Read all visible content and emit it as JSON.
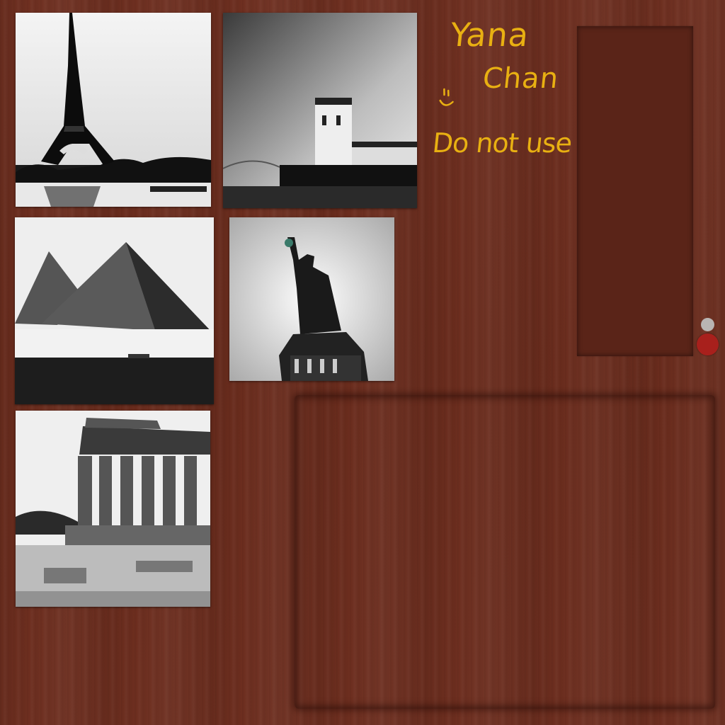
{
  "sticky_note": {
    "name_line_1": "Yana",
    "name_line_2": "Chan",
    "warning": "Do not use",
    "color": "#e8b012"
  },
  "photos": [
    {
      "subject": "eiffel-tower"
    },
    {
      "subject": "belem-tower"
    },
    {
      "subject": "pyramids"
    },
    {
      "subject": "statue-of-liberty"
    },
    {
      "subject": "parthenon"
    }
  ],
  "indicators": {
    "grey": "#b9b5b3",
    "red": "#a8201c"
  },
  "colors": {
    "wood": "#6d2e1f",
    "panel": "#5a2418"
  }
}
